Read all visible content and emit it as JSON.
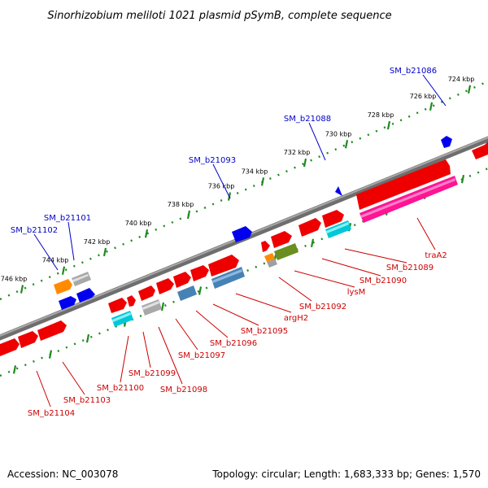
{
  "title": "Sinorhizobium meliloti 1021 plasmid pSymB, complete sequence",
  "footer": {
    "accession": "Accession: NC_003078",
    "summary": "Topology: circular; Length: 1,683,333 bp; Genes: 1,570"
  },
  "colors": {
    "backbone": "#808080",
    "tick": "#008000",
    "upper_label": "#0000cc",
    "lower_label": "#cc0000",
    "forward_feature": "#ff0000",
    "reverse_feature": "#0000ff"
  },
  "ticks": [
    {
      "label": "724 kbp"
    },
    {
      "label": "726 kbp"
    },
    {
      "label": "728 kbp"
    },
    {
      "label": "730 kbp"
    },
    {
      "label": "732 kbp"
    },
    {
      "label": "734 kbp"
    },
    {
      "label": "736 kbp"
    },
    {
      "label": "738 kbp"
    },
    {
      "label": "740 kbp"
    },
    {
      "label": "742 kbp"
    },
    {
      "label": "744 kbp"
    },
    {
      "label": "746 kbp"
    }
  ],
  "upper_labels": [
    {
      "text": "SM_b21086"
    },
    {
      "text": "SM_b21088"
    },
    {
      "text": "SM_b21093"
    },
    {
      "text": "SM_b21101"
    },
    {
      "text": "SM_b21102"
    }
  ],
  "lower_labels": [
    {
      "text": "traA2"
    },
    {
      "text": "SM_b21089"
    },
    {
      "text": "SM_b21090"
    },
    {
      "text": "lysM"
    },
    {
      "text": "SM_b21092"
    },
    {
      "text": "argH2"
    },
    {
      "text": "SM_b21095"
    },
    {
      "text": "SM_b21096"
    },
    {
      "text": "SM_b21097"
    },
    {
      "text": "SM_b21098"
    },
    {
      "text": "SM_b21099"
    },
    {
      "text": "SM_b21100"
    },
    {
      "text": "SM_b21103"
    },
    {
      "text": "SM_b21104"
    }
  ]
}
